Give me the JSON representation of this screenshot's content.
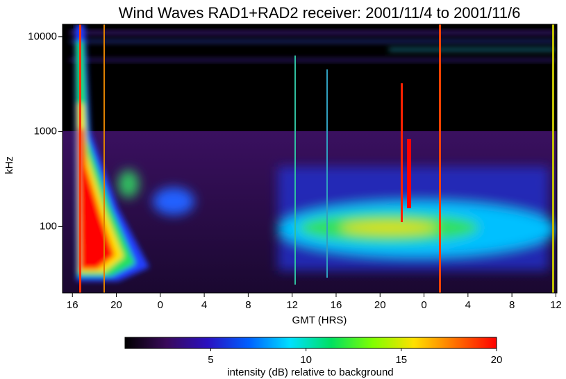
{
  "chart_data": {
    "type": "spectrogram",
    "title": "Wind Waves RAD1+RAD2 receiver: 2001/11/4 to 2001/11/6",
    "xlabel": "GMT (HRS)",
    "ylabel": "kHz",
    "xlim": [
      15.1,
      60.1
    ],
    "xticks": [
      16,
      20,
      {
        "value": 24,
        "label": "0"
      },
      {
        "value": 28,
        "label": "4"
      },
      {
        "value": 32,
        "label": "8"
      },
      {
        "value": 36,
        "label": "12"
      },
      {
        "value": 40,
        "label": "16"
      },
      {
        "value": 44,
        "label": "20"
      },
      {
        "value": 48,
        "label": "0"
      },
      {
        "value": 52,
        "label": "4"
      },
      {
        "value": 56,
        "label": "8"
      },
      {
        "value": 60,
        "label": "12"
      }
    ],
    "ylim": [
      20,
      13500
    ],
    "yticks": [
      100,
      1000,
      10000
    ],
    "yscale": "log",
    "colorbar": {
      "label": "intensity (dB) relative to background",
      "clim": [
        0.5,
        20
      ],
      "ticks": [
        5,
        10,
        15,
        20
      ],
      "colormap": [
        "#000000",
        "#3a0a5a",
        "#2a10c0",
        "#0060ff",
        "#00e0ff",
        "#00e060",
        "#80ff00",
        "#ffe000",
        "#ff7000",
        "#ff0000"
      ]
    }
  }
}
